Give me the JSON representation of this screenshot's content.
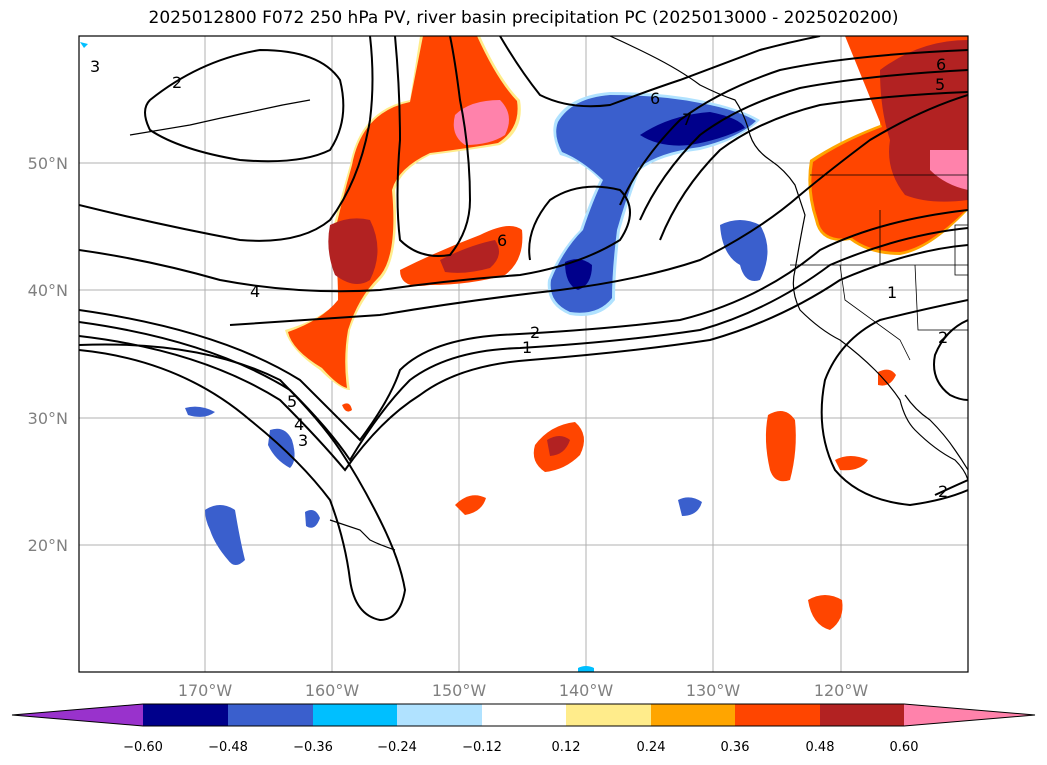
{
  "title": "2025012800 F072 250 hPa PV, river basin precipitation PC (2025013000 - 2025020200)",
  "map": {
    "lat_labels": [
      "50°N",
      "40°N",
      "30°N",
      "20°N"
    ],
    "lon_labels": [
      "170°W",
      "160°W",
      "150°W",
      "140°W",
      "130°W",
      "120°W"
    ],
    "contour_labels": [
      "3",
      "2",
      "6",
      "5",
      "6",
      "4",
      "6",
      "7",
      "2",
      "1",
      "5",
      "4",
      "3",
      "1",
      "2",
      "2"
    ]
  },
  "colorbar": {
    "ticks": [
      "−0.60",
      "−0.48",
      "−0.36",
      "−0.24",
      "−0.12",
      "0.12",
      "0.24",
      "0.36",
      "0.48",
      "0.60"
    ],
    "colors": [
      "#9932cc",
      "#00008b",
      "#3a5fcd",
      "#00bfff",
      "#b0e2ff",
      "#ffffff",
      "#ffec8b",
      "#ffa500",
      "#ff4500",
      "#b22222",
      "#ff82ab"
    ]
  }
}
